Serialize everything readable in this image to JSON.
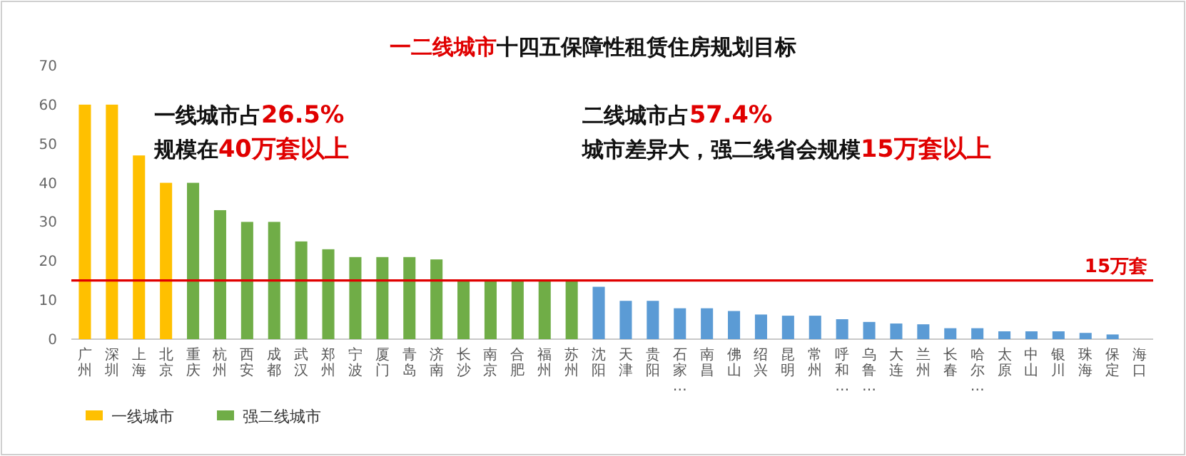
{
  "chart_data": {
    "type": "bar",
    "title": "一二线城市十四五保障性租赁住房规划目标",
    "categories": [
      "广州",
      "深圳",
      "上海",
      "北京",
      "重庆",
      "杭州",
      "西安",
      "成都",
      "武汉",
      "郑州",
      "宁波",
      "厦门",
      "青岛",
      "济南",
      "长沙",
      "南京",
      "合肥",
      "福州",
      "苏州",
      "沈阳",
      "天津",
      "贵阳",
      "石家…",
      "南昌",
      "佛山",
      "绍兴",
      "昆明",
      "常州",
      "呼和…",
      "乌鲁…",
      "大连",
      "兰州",
      "长春",
      "哈尔…",
      "太原",
      "中山",
      "银川",
      "珠海",
      "保定",
      "海口"
    ],
    "series": [
      {
        "name": "一线城市",
        "color": "#ffc000",
        "values": [
          60,
          60,
          47,
          40,
          null,
          null,
          null,
          null,
          null,
          null,
          null,
          null,
          null,
          null,
          null,
          null,
          null,
          null,
          null,
          null,
          null,
          null,
          null,
          null,
          null,
          null,
          null,
          null,
          null,
          null,
          null,
          null,
          null,
          null,
          null,
          null,
          null,
          null,
          null,
          null
        ]
      },
      {
        "name": "强二线城市",
        "color": "#70ad47",
        "values": [
          null,
          null,
          null,
          null,
          40,
          33,
          30,
          30,
          25,
          23,
          21,
          21,
          21,
          20.4,
          15,
          15,
          15,
          15,
          15,
          null,
          null,
          null,
          null,
          null,
          null,
          null,
          null,
          null,
          null,
          null,
          null,
          null,
          null,
          null,
          null,
          null,
          null,
          null,
          null,
          null
        ]
      },
      {
        "color": "#5b9bd5",
        "values": [
          null,
          null,
          null,
          null,
          null,
          null,
          null,
          null,
          null,
          null,
          null,
          null,
          null,
          null,
          null,
          null,
          null,
          null,
          null,
          13.4,
          9.8,
          9.8,
          7.9,
          7.9,
          7.2,
          6.3,
          6,
          6,
          5.1,
          4.4,
          4,
          3.8,
          2.8,
          2.8,
          2,
          2,
          2,
          1.6,
          1.2,
          0
        ]
      }
    ],
    "ylim": [
      0,
      70
    ],
    "yticks": [
      0,
      10,
      20,
      30,
      40,
      50,
      60,
      70
    ],
    "grid": false,
    "legend": "bottom",
    "ref_lines": [
      {
        "axis": "y",
        "value": 15,
        "label": "15万套",
        "color": "#e00000"
      }
    ],
    "annotations": [
      "一线城市占26.5%",
      "规模在40万套以上",
      "二线城市占57.4%",
      "城市差异大，强二线省会规模15万套以上"
    ]
  }
}
